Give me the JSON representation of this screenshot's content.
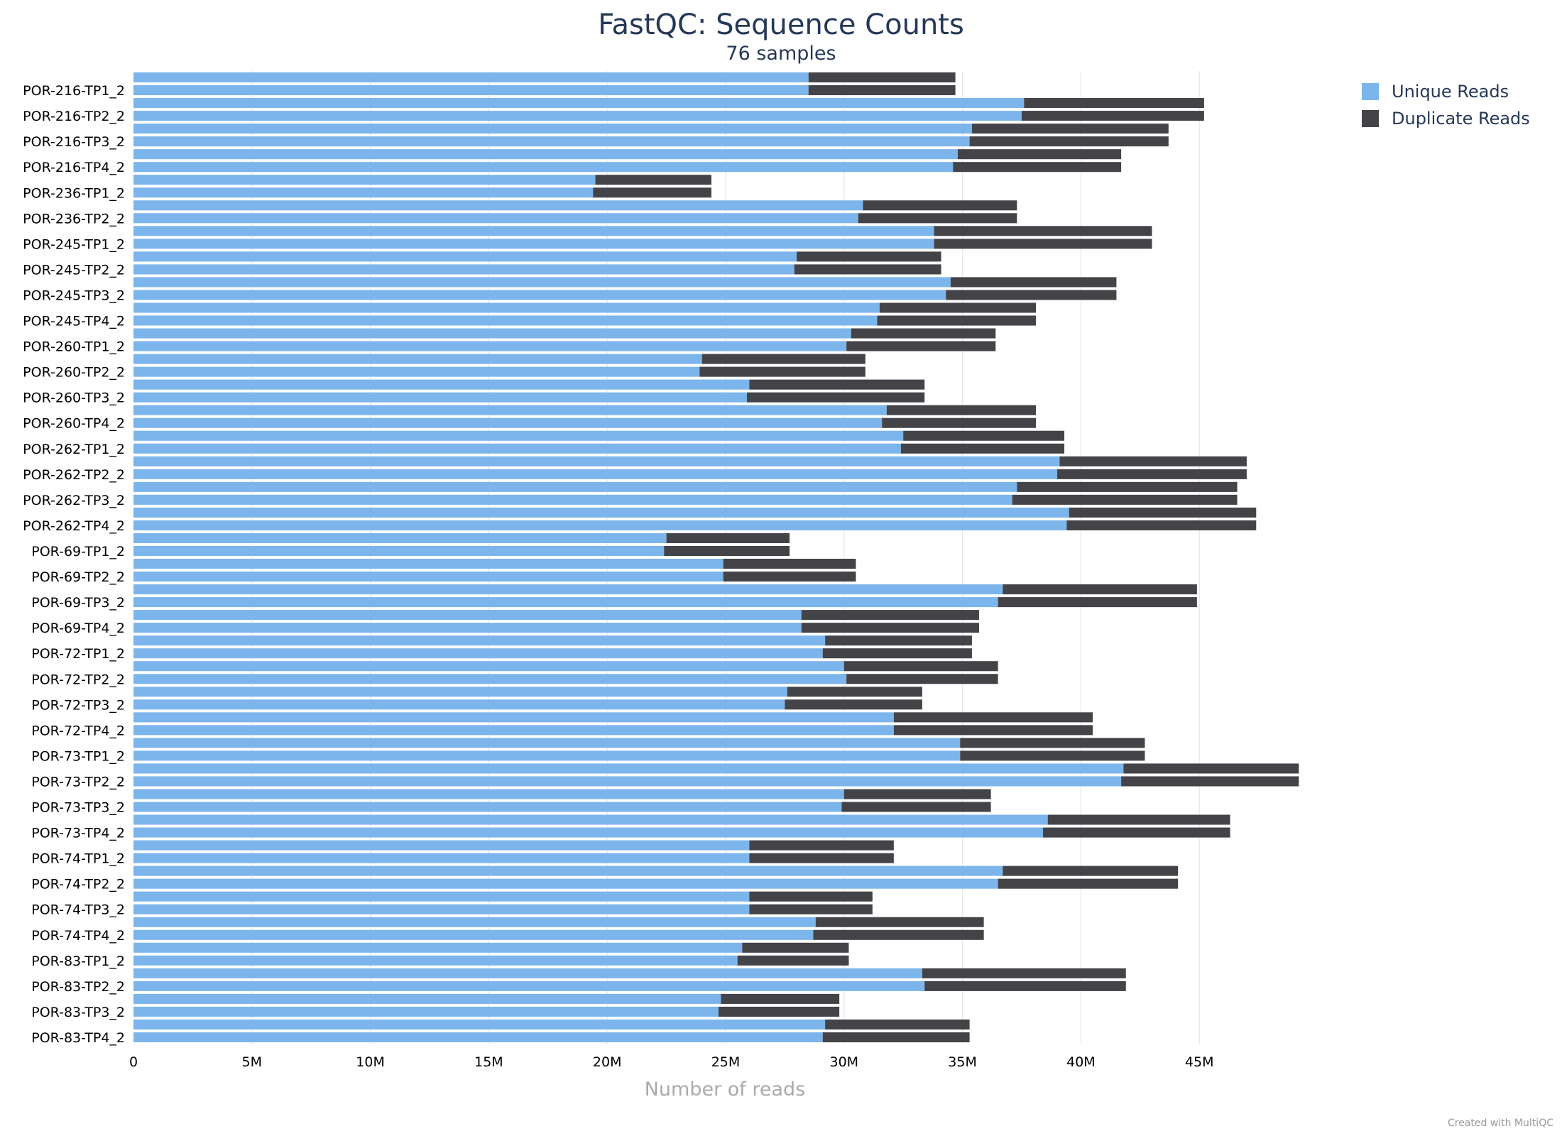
{
  "chart_data": {
    "type": "bar",
    "orientation": "horizontal",
    "stacked": true,
    "title": "FastQC: Sequence Counts",
    "subtitle": "76 samples",
    "xlabel": "Number of reads",
    "xlim": [
      0,
      50000000
    ],
    "x_ticks": [
      {
        "value": 0,
        "label": "0"
      },
      {
        "value": 5000000,
        "label": "5M"
      },
      {
        "value": 10000000,
        "label": "10M"
      },
      {
        "value": 15000000,
        "label": "15M"
      },
      {
        "value": 20000000,
        "label": "20M"
      },
      {
        "value": 25000000,
        "label": "25M"
      },
      {
        "value": 30000000,
        "label": "30M"
      },
      {
        "value": 35000000,
        "label": "35M"
      },
      {
        "value": 40000000,
        "label": "40M"
      },
      {
        "value": 45000000,
        "label": "45M"
      }
    ],
    "y_tick_labels": [
      "POR-216-TP1_2",
      "POR-216-TP2_2",
      "POR-216-TP3_2",
      "POR-216-TP4_2",
      "POR-236-TP1_2",
      "POR-236-TP2_2",
      "POR-245-TP1_2",
      "POR-245-TP2_2",
      "POR-245-TP3_2",
      "POR-245-TP4_2",
      "POR-260-TP1_2",
      "POR-260-TP2_2",
      "POR-260-TP3_2",
      "POR-260-TP4_2",
      "POR-262-TP1_2",
      "POR-262-TP2_2",
      "POR-262-TP3_2",
      "POR-262-TP4_2",
      "POR-69-TP1_2",
      "POR-69-TP2_2",
      "POR-69-TP3_2",
      "POR-69-TP4_2",
      "POR-72-TP1_2",
      "POR-72-TP2_2",
      "POR-72-TP3_2",
      "POR-72-TP4_2",
      "POR-73-TP1_2",
      "POR-73-TP2_2",
      "POR-73-TP3_2",
      "POR-73-TP4_2",
      "POR-74-TP1_2",
      "POR-74-TP2_2",
      "POR-74-TP3_2",
      "POR-74-TP4_2",
      "POR-83-TP1_2",
      "POR-83-TP2_2",
      "POR-83-TP3_2",
      "POR-83-TP4_2"
    ],
    "bars_per_label": 2,
    "unique": [
      28.5,
      28.5,
      37.6,
      37.5,
      35.4,
      35.3,
      34.8,
      34.6,
      19.5,
      19.4,
      30.8,
      30.6,
      33.8,
      33.8,
      28.0,
      27.9,
      34.5,
      34.3,
      31.5,
      31.4,
      30.3,
      30.1,
      24.0,
      23.9,
      26.0,
      25.9,
      31.8,
      31.6,
      32.5,
      32.4,
      39.1,
      39.0,
      37.3,
      37.1,
      39.5,
      39.4,
      22.5,
      22.4,
      24.9,
      24.9,
      36.7,
      36.5,
      28.2,
      28.2,
      29.2,
      29.1,
      30.0,
      30.1,
      27.6,
      27.5,
      32.1,
      32.1,
      34.9,
      34.9,
      41.8,
      41.7,
      30.0,
      29.9,
      38.6,
      38.4,
      26.0,
      26.0,
      36.7,
      36.5,
      26.0,
      26.0,
      28.8,
      28.7,
      25.7,
      25.5,
      33.3,
      33.4,
      24.8,
      24.7,
      29.2,
      29.1
    ],
    "total": [
      34.7,
      34.7,
      45.2,
      45.2,
      43.7,
      43.7,
      41.7,
      41.7,
      24.4,
      24.4,
      37.3,
      37.3,
      43.0,
      43.0,
      34.1,
      34.1,
      41.5,
      41.5,
      38.1,
      38.1,
      36.4,
      36.4,
      30.9,
      30.9,
      33.4,
      33.4,
      38.1,
      38.1,
      39.3,
      39.3,
      47.0,
      47.0,
      46.6,
      46.6,
      47.4,
      47.4,
      27.7,
      27.7,
      30.5,
      30.5,
      44.9,
      44.9,
      35.7,
      35.7,
      35.4,
      35.4,
      36.5,
      36.5,
      33.3,
      33.3,
      40.5,
      40.5,
      42.7,
      42.7,
      49.2,
      49.2,
      36.2,
      36.2,
      46.3,
      46.3,
      32.1,
      32.1,
      44.1,
      44.1,
      31.2,
      31.2,
      35.9,
      35.9,
      30.2,
      30.2,
      41.9,
      41.9,
      29.8,
      29.8,
      35.3,
      35.3
    ],
    "values_unit": "millions of reads",
    "series": [
      {
        "name": "Unique Reads",
        "color": "#7cb5ec"
      },
      {
        "name": "Duplicate Reads",
        "color": "#434348"
      }
    ],
    "legend_position": "top-right",
    "grid": "vertical"
  },
  "credit": "Created with MultiQC"
}
